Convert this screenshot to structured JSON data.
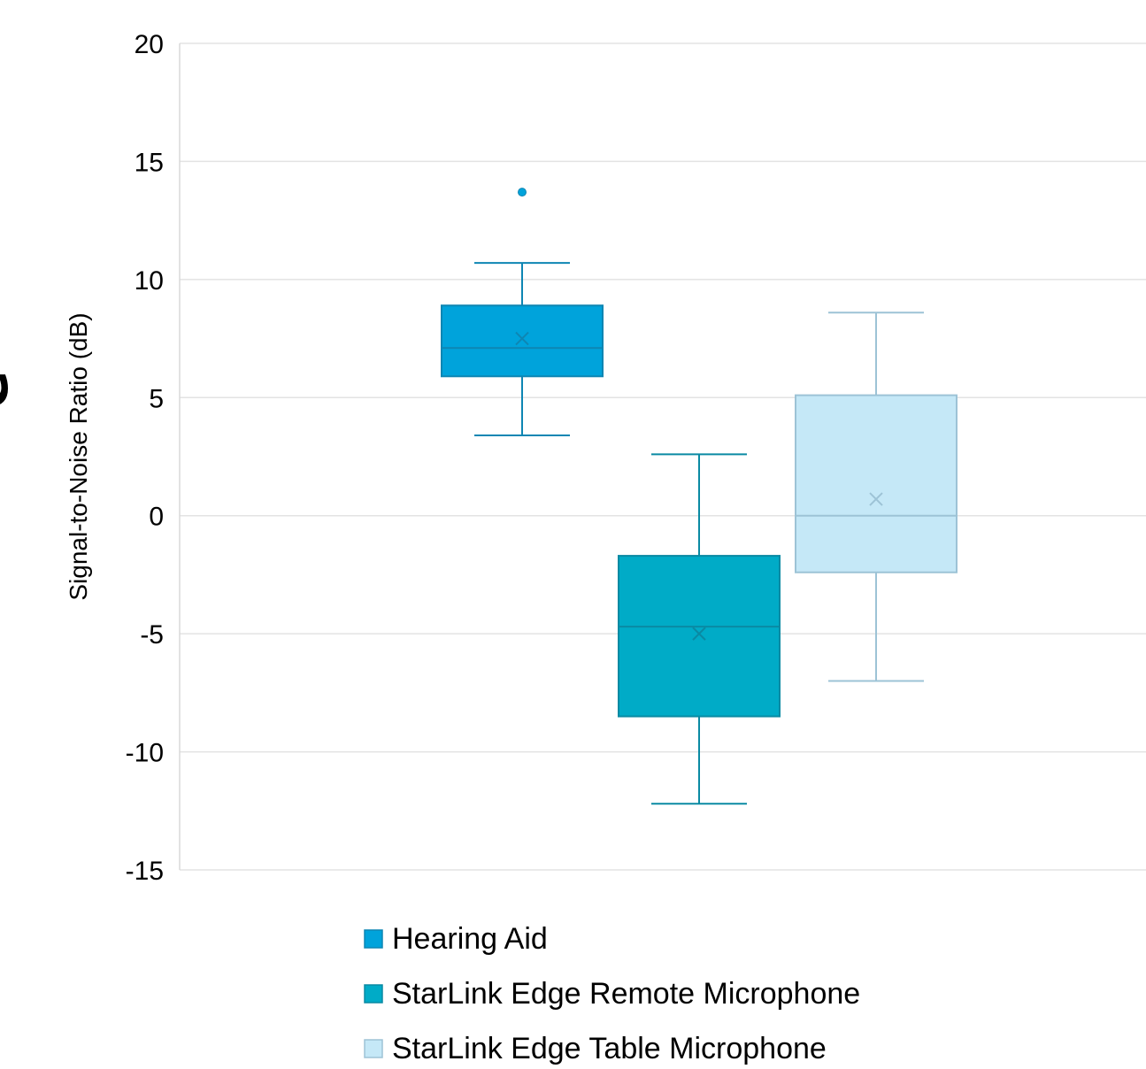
{
  "chart_data": {
    "type": "box",
    "ylabel": "Signal-to-Noise Ratio (dB)",
    "ylim": [
      -15,
      20
    ],
    "yticks": [
      "20",
      "15",
      "10",
      "5",
      "0",
      "-5",
      "-10",
      "-15"
    ],
    "grid": true,
    "legend_position": "bottom",
    "cut_off_text": "e",
    "series": [
      {
        "name": "Hearing Aid",
        "color": "#00A3DB",
        "min": 3.4,
        "q1": 5.9,
        "median": 7.1,
        "q3": 8.9,
        "max": 10.7,
        "mean": 7.5,
        "outliers": [
          13.7
        ]
      },
      {
        "name": "StarLink Edge Remote Microphone",
        "color": "#00ABC7",
        "min": -12.2,
        "q1": -8.5,
        "median": -4.7,
        "q3": -1.7,
        "max": 2.6,
        "mean": -5.0,
        "outliers": []
      },
      {
        "name": "StarLink Edge Table Microphone",
        "color": "#C5E8F7",
        "min": -7.0,
        "q1": -2.4,
        "median": 0.0,
        "q3": 5.1,
        "max": 8.6,
        "mean": 0.7,
        "outliers": []
      }
    ]
  }
}
